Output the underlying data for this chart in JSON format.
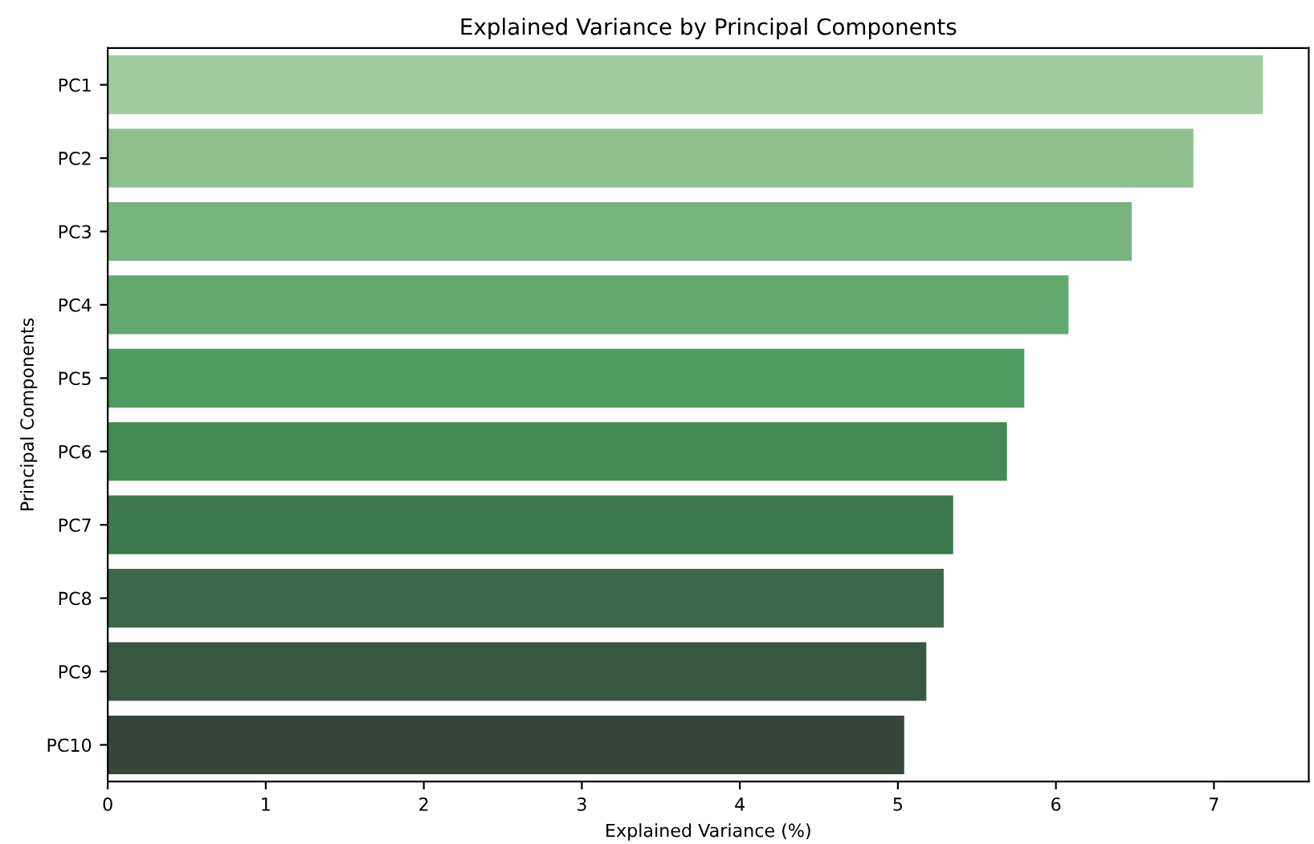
{
  "chart_data": {
    "type": "bar",
    "orientation": "horizontal",
    "title": "Explained Variance by Principal Components",
    "xlabel": "Explained Variance (%)",
    "ylabel": "Principal Components",
    "categories": [
      "PC1",
      "PC2",
      "PC3",
      "PC4",
      "PC5",
      "PC6",
      "PC7",
      "PC8",
      "PC9",
      "PC10"
    ],
    "values": [
      7.31,
      6.87,
      6.48,
      6.08,
      5.8,
      5.69,
      5.35,
      5.29,
      5.18,
      5.04
    ],
    "colors": [
      "#a1cca0",
      "#8dbf8e",
      "#77b47f",
      "#63a86f",
      "#4d9a60",
      "#438a55",
      "#3c7a4d",
      "#3a6849",
      "#385742",
      "#37453b"
    ],
    "xlim": [
      0,
      7.6
    ],
    "xticks": [
      0,
      1,
      2,
      3,
      4,
      5,
      6,
      7
    ],
    "grid": false,
    "legend": false
  }
}
